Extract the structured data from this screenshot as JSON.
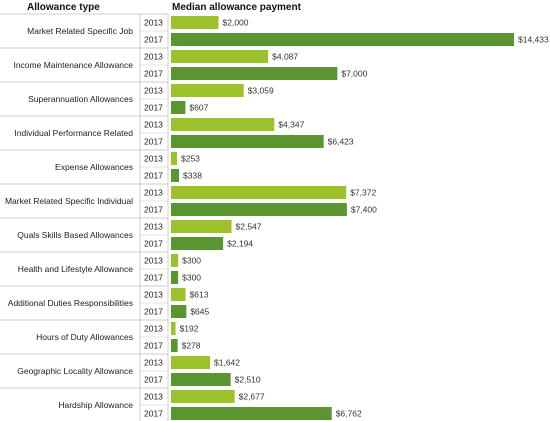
{
  "chart_data": {
    "type": "bar",
    "orientation": "horizontal",
    "headers": {
      "category": "Allowance type",
      "value": "Median allowance payment"
    },
    "years": [
      "2013",
      "2017"
    ],
    "categories": [
      "Market Related Specific Job",
      "Income Maintenance Allowance",
      "Superannuation Allowances",
      "Individual Performance Related",
      "Expense Allowances",
      "Market Related Specific Individual",
      "Quals Skills Based Allowances",
      "Health and Lifestyle Allowance",
      "Additional Duties Responsibilities",
      "Hours of Duty Allowances",
      "Geographic Locality Allowance",
      "Hardship Allowance"
    ],
    "series": [
      {
        "name": "2013",
        "color": "#9bc12b",
        "values": [
          2000,
          4087,
          3059,
          4347,
          253,
          7372,
          2547,
          300,
          613,
          192,
          1642,
          2677
        ],
        "labels": [
          "$2,000",
          "$4,087",
          "$3,059",
          "$4,347",
          "$253",
          "$7,372",
          "$2,547",
          "$300",
          "$613",
          "$192",
          "$1,642",
          "$2,677"
        ]
      },
      {
        "name": "2017",
        "color": "#5b9532",
        "values": [
          14433,
          7000,
          607,
          6423,
          338,
          7400,
          2194,
          300,
          645,
          278,
          2510,
          6762
        ],
        "labels": [
          "$14,433",
          "$7,000",
          "$607",
          "$6,423",
          "$338",
          "$7,400",
          "$2,194",
          "$300",
          "$645",
          "$278",
          "$2,510",
          "$6,762"
        ]
      }
    ],
    "xlim": [
      0,
      15500
    ],
    "grid": false,
    "legend": "none"
  }
}
